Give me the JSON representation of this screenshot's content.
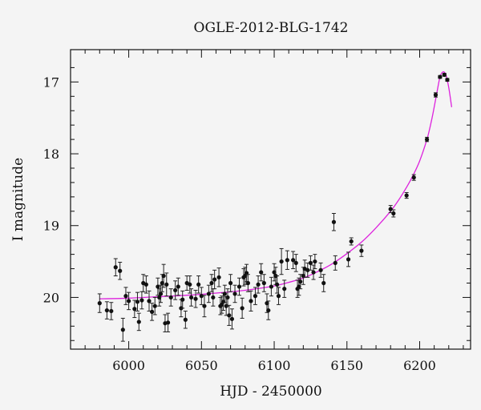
{
  "chart_data": {
    "type": "scatter",
    "title": "OGLE-2012-BLG-1742",
    "xlabel": "HJD - 2450000",
    "ylabel": "I magnitude",
    "xlim": [
      5960,
      6235
    ],
    "ylim": [
      20.72,
      16.55
    ],
    "y_inverted": true,
    "grid": false,
    "x_ticks": [
      6000,
      6050,
      6100,
      6150,
      6200
    ],
    "y_ticks": [
      17,
      18,
      19,
      20
    ],
    "points": [
      {
        "x": 5980,
        "y": 20.08,
        "err": 0.13
      },
      {
        "x": 5985,
        "y": 20.18,
        "err": 0.12
      },
      {
        "x": 5988,
        "y": 20.19,
        "err": 0.12
      },
      {
        "x": 5991,
        "y": 19.58,
        "err": 0.12
      },
      {
        "x": 5994,
        "y": 19.63,
        "err": 0.12
      },
      {
        "x": 5996,
        "y": 20.45,
        "err": 0.16
      },
      {
        "x": 5998,
        "y": 19.98,
        "err": 0.12
      },
      {
        "x": 6000,
        "y": 20.05,
        "err": 0.12
      },
      {
        "x": 6004,
        "y": 20.16,
        "err": 0.12
      },
      {
        "x": 6006,
        "y": 20.06,
        "err": 0.13
      },
      {
        "x": 6007,
        "y": 20.34,
        "err": 0.12
      },
      {
        "x": 6009,
        "y": 20.04,
        "err": 0.12
      },
      {
        "x": 6010,
        "y": 19.8,
        "err": 0.12
      },
      {
        "x": 6012,
        "y": 19.82,
        "err": 0.12
      },
      {
        "x": 6014,
        "y": 20.05,
        "err": 0.14
      },
      {
        "x": 6016,
        "y": 20.2,
        "err": 0.12
      },
      {
        "x": 6018,
        "y": 20.12,
        "err": 0.12
      },
      {
        "x": 6020,
        "y": 19.85,
        "err": 0.12
      },
      {
        "x": 6021,
        "y": 20.0,
        "err": 0.12
      },
      {
        "x": 6022,
        "y": 19.95,
        "err": 0.12
      },
      {
        "x": 6023,
        "y": 19.8,
        "err": 0.12
      },
      {
        "x": 6024,
        "y": 19.7,
        "err": 0.16
      },
      {
        "x": 6025,
        "y": 20.36,
        "err": 0.12
      },
      {
        "x": 6026,
        "y": 19.82,
        "err": 0.16
      },
      {
        "x": 6027,
        "y": 20.35,
        "err": 0.13
      },
      {
        "x": 6029,
        "y": 20.0,
        "err": 0.12
      },
      {
        "x": 6032,
        "y": 19.9,
        "err": 0.13
      },
      {
        "x": 6034,
        "y": 19.85,
        "err": 0.12
      },
      {
        "x": 6036,
        "y": 20.15,
        "err": 0.12
      },
      {
        "x": 6037,
        "y": 20.03,
        "err": 0.12
      },
      {
        "x": 6039,
        "y": 20.31,
        "err": 0.12
      },
      {
        "x": 6040,
        "y": 19.8,
        "err": 0.1
      },
      {
        "x": 6042,
        "y": 19.82,
        "err": 0.12
      },
      {
        "x": 6043,
        "y": 20.0,
        "err": 0.12
      },
      {
        "x": 6046,
        "y": 20.02,
        "err": 0.12
      },
      {
        "x": 6048,
        "y": 19.82,
        "err": 0.12
      },
      {
        "x": 6050,
        "y": 19.98,
        "err": 0.12
      },
      {
        "x": 6052,
        "y": 20.12,
        "err": 0.15
      },
      {
        "x": 6055,
        "y": 19.95,
        "err": 0.12
      },
      {
        "x": 6057,
        "y": 19.8,
        "err": 0.12
      },
      {
        "x": 6058,
        "y": 20.0,
        "err": 0.12
      },
      {
        "x": 6059,
        "y": 19.75,
        "err": 0.13
      },
      {
        "x": 6062,
        "y": 19.72,
        "err": 0.13
      },
      {
        "x": 6063,
        "y": 20.12,
        "err": 0.12
      },
      {
        "x": 6064,
        "y": 20.1,
        "err": 0.12
      },
      {
        "x": 6065,
        "y": 20.06,
        "err": 0.12
      },
      {
        "x": 6066,
        "y": 19.95,
        "err": 0.12
      },
      {
        "x": 6067,
        "y": 20.12,
        "err": 0.13
      },
      {
        "x": 6068,
        "y": 20.0,
        "err": 0.12
      },
      {
        "x": 6069,
        "y": 20.25,
        "err": 0.14
      },
      {
        "x": 6070,
        "y": 19.8,
        "err": 0.12
      },
      {
        "x": 6071,
        "y": 20.3,
        "err": 0.14
      },
      {
        "x": 6073,
        "y": 19.95,
        "err": 0.12
      },
      {
        "x": 6076,
        "y": 19.85,
        "err": 0.12
      },
      {
        "x": 6078,
        "y": 20.15,
        "err": 0.14
      },
      {
        "x": 6079,
        "y": 19.72,
        "err": 0.12
      },
      {
        "x": 6080,
        "y": 19.7,
        "err": 0.12
      },
      {
        "x": 6081,
        "y": 19.66,
        "err": 0.12
      },
      {
        "x": 6082,
        "y": 19.8,
        "err": 0.12
      },
      {
        "x": 6084,
        "y": 20.05,
        "err": 0.14
      },
      {
        "x": 6087,
        "y": 19.98,
        "err": 0.12
      },
      {
        "x": 6089,
        "y": 19.82,
        "err": 0.12
      },
      {
        "x": 6091,
        "y": 19.65,
        "err": 0.12
      },
      {
        "x": 6093,
        "y": 19.8,
        "err": 0.12
      },
      {
        "x": 6095,
        "y": 20.08,
        "err": 0.13
      },
      {
        "x": 6096,
        "y": 20.18,
        "err": 0.13
      },
      {
        "x": 6098,
        "y": 19.85,
        "err": 0.13
      },
      {
        "x": 6100,
        "y": 19.65,
        "err": 0.12
      },
      {
        "x": 6101,
        "y": 19.7,
        "err": 0.12
      },
      {
        "x": 6102,
        "y": 19.82,
        "err": 0.12
      },
      {
        "x": 6103,
        "y": 19.98,
        "err": 0.12
      },
      {
        "x": 6105,
        "y": 19.5,
        "err": 0.18
      },
      {
        "x": 6107,
        "y": 19.88,
        "err": 0.12
      },
      {
        "x": 6109,
        "y": 19.48,
        "err": 0.13
      },
      {
        "x": 6113,
        "y": 19.48,
        "err": 0.12
      },
      {
        "x": 6115,
        "y": 19.52,
        "err": 0.12
      },
      {
        "x": 6116,
        "y": 19.88,
        "err": 0.12
      },
      {
        "x": 6117,
        "y": 19.85,
        "err": 0.12
      },
      {
        "x": 6118,
        "y": 19.78,
        "err": 0.1
      },
      {
        "x": 6120,
        "y": 19.7,
        "err": 0.12
      },
      {
        "x": 6121,
        "y": 19.6,
        "err": 0.12
      },
      {
        "x": 6123,
        "y": 19.62,
        "err": 0.1
      },
      {
        "x": 6125,
        "y": 19.52,
        "err": 0.1
      },
      {
        "x": 6127,
        "y": 19.65,
        "err": 0.1
      },
      {
        "x": 6128,
        "y": 19.5,
        "err": 0.1
      },
      {
        "x": 6132,
        "y": 19.62,
        "err": 0.1
      },
      {
        "x": 6134,
        "y": 19.8,
        "err": 0.12
      },
      {
        "x": 6141,
        "y": 18.95,
        "err": 0.12
      },
      {
        "x": 6142,
        "y": 19.52,
        "err": 0.1
      },
      {
        "x": 6151,
        "y": 19.47,
        "err": 0.1
      },
      {
        "x": 6153,
        "y": 19.22,
        "err": 0.05
      },
      {
        "x": 6160,
        "y": 19.35,
        "err": 0.08
      },
      {
        "x": 6180,
        "y": 18.77,
        "err": 0.05
      },
      {
        "x": 6182,
        "y": 18.83,
        "err": 0.05
      },
      {
        "x": 6191,
        "y": 18.58,
        "err": 0.04
      },
      {
        "x": 6196,
        "y": 18.33,
        "err": 0.04
      },
      {
        "x": 6205,
        "y": 17.8,
        "err": 0.03
      },
      {
        "x": 6211,
        "y": 17.18,
        "err": 0.03
      },
      {
        "x": 6214,
        "y": 16.93,
        "err": 0.02
      },
      {
        "x": 6217,
        "y": 16.9,
        "err": 0.02
      },
      {
        "x": 6219,
        "y": 16.97,
        "err": 0.02
      }
    ],
    "model": {
      "name": "",
      "color": "#dd22dd",
      "x": [
        5980,
        6000,
        6020,
        6040,
        6060,
        6080,
        6100,
        6110,
        6120,
        6130,
        6140,
        6150,
        6160,
        6170,
        6180,
        6185,
        6190,
        6195,
        6200,
        6205,
        6208,
        6210,
        6212,
        6214,
        6216,
        6218,
        6220,
        6222
      ],
      "y": [
        20.02,
        20.01,
        19.99,
        19.97,
        19.94,
        19.9,
        19.84,
        19.79,
        19.73,
        19.64,
        19.53,
        19.39,
        19.23,
        19.03,
        18.8,
        18.66,
        18.5,
        18.32,
        18.1,
        17.8,
        17.55,
        17.35,
        17.13,
        16.93,
        16.86,
        16.9,
        17.08,
        17.35
      ]
    },
    "marker_color": "#111111"
  }
}
